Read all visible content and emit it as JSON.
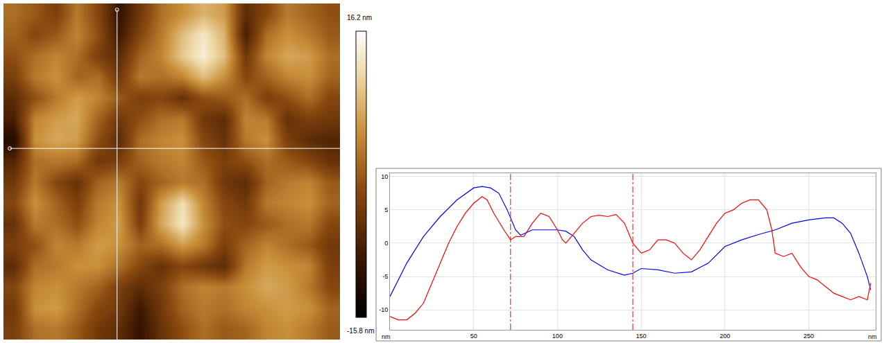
{
  "chart_data": [
    {
      "type": "heatmap",
      "tick_labels": false,
      "xlim": [
        -0.5,
        15.5
      ],
      "ylim": [
        15.5,
        -0.5
      ],
      "cells": [
        [
          2,
          0,
          -3,
          3,
          -2,
          -10,
          -4,
          2,
          5,
          8,
          6,
          -6,
          -2,
          3,
          1,
          -1
        ],
        [
          1,
          -2,
          0,
          4,
          -1,
          -9,
          -2,
          3,
          9,
          13,
          8,
          -8,
          2,
          5,
          3,
          0
        ],
        [
          -1,
          2,
          4,
          2,
          -3,
          -6,
          1,
          4,
          10,
          14,
          9,
          -4,
          4,
          7,
          6,
          2
        ],
        [
          -3,
          3,
          5,
          1,
          2,
          -4,
          3,
          2,
          4,
          9,
          5,
          -2,
          1,
          4,
          5,
          1
        ],
        [
          -6,
          -1,
          3,
          6,
          4,
          0,
          -3,
          -2,
          -5,
          -1,
          0,
          2,
          -3,
          -1,
          2,
          -2
        ],
        [
          -8,
          4,
          6,
          7,
          1,
          -4,
          -1,
          2,
          3,
          -4,
          -6,
          4,
          3,
          -5,
          -3,
          -4
        ],
        [
          -12,
          5,
          7,
          6,
          -1,
          -6,
          2,
          4,
          5,
          -2,
          -5,
          3,
          5,
          -3,
          -6,
          -7
        ],
        [
          -7,
          2,
          3,
          2,
          -4,
          -3,
          1,
          3,
          4,
          0,
          -3,
          -1,
          2,
          0,
          -2,
          -5
        ],
        [
          -4,
          3,
          -2,
          -5,
          1,
          3,
          -2,
          1,
          3,
          2,
          -4,
          -6,
          1,
          3,
          4,
          0
        ],
        [
          -2,
          5,
          1,
          -3,
          3,
          5,
          -4,
          6,
          12,
          4,
          -2,
          -4,
          3,
          4,
          5,
          1
        ],
        [
          -5,
          3,
          2,
          -1,
          4,
          6,
          -3,
          7,
          13,
          5,
          -1,
          -2,
          0,
          2,
          3,
          -2
        ],
        [
          -3,
          -1,
          4,
          3,
          6,
          5,
          1,
          2,
          6,
          3,
          -3,
          1,
          4,
          2,
          0,
          -4
        ],
        [
          -6,
          2,
          3,
          5,
          5,
          2,
          -2,
          -5,
          -2,
          -4,
          -6,
          3,
          6,
          5,
          4,
          -3
        ],
        [
          -2,
          4,
          5,
          3,
          1,
          -3,
          -6,
          -3,
          2,
          4,
          3,
          5,
          7,
          6,
          3,
          -2
        ],
        [
          -4,
          5,
          6,
          2,
          -2,
          -4,
          -9,
          -4,
          1,
          3,
          2,
          4,
          5,
          6,
          5,
          1
        ],
        [
          -3,
          2,
          3,
          0,
          -4,
          -6,
          -10,
          -5,
          -1,
          2,
          0,
          1,
          4,
          5,
          3,
          0
        ]
      ],
      "colorbar": {
        "range": [
          -15.8,
          16.2
        ],
        "ticks": [
          {
            "value": 16.2,
            "label": "16.2 nm"
          },
          {
            "value": -15.8,
            "label": "-15.8 nm"
          }
        ]
      },
      "crosshair": {
        "x": 4.9,
        "y": 6.4,
        "x_start": -0.2,
        "y_start": -0.2,
        "color": "#ffffff"
      }
    },
    {
      "type": "line",
      "xlabel": "nm",
      "xlim": [
        0,
        290
      ],
      "ylim": [
        -13,
        10.5
      ],
      "xticks": [
        50,
        100,
        150,
        200,
        250
      ],
      "yticks": [
        -10,
        -5,
        0,
        5,
        10
      ],
      "grid": true,
      "series": [
        {
          "color": "#0000ff",
          "x": [
            0,
            10,
            20,
            30,
            40,
            50,
            55,
            60,
            65,
            70,
            75,
            78,
            85,
            95,
            100,
            105,
            110,
            115,
            120,
            130,
            140,
            145,
            150,
            160,
            170,
            180,
            190,
            200,
            210,
            220,
            230,
            240,
            250,
            260,
            265,
            270,
            275,
            280,
            285,
            287
          ],
          "values": [
            -8,
            -3,
            1,
            4,
            6.5,
            8.3,
            8.5,
            8.3,
            7.5,
            5,
            2,
            1.2,
            2,
            2,
            2,
            1.8,
            1,
            -1,
            -2.5,
            -4,
            -4.8,
            -4.5,
            -3.8,
            -4,
            -4.5,
            -4.3,
            -3,
            -0.5,
            0.5,
            1.3,
            2,
            3,
            3.5,
            3.8,
            3.8,
            3,
            1.5,
            -1.5,
            -5,
            -7
          ]
        },
        {
          "color": "#ff0000",
          "x": [
            0,
            5,
            10,
            15,
            20,
            25,
            30,
            35,
            40,
            45,
            50,
            55,
            58,
            62,
            68,
            72,
            75,
            80,
            85,
            90,
            95,
            100,
            103,
            105,
            110,
            115,
            120,
            125,
            130,
            135,
            140,
            145,
            150,
            155,
            160,
            165,
            170,
            175,
            180,
            185,
            190,
            195,
            200,
            205,
            210,
            215,
            220,
            225,
            228,
            230,
            235,
            240,
            245,
            250,
            255,
            260,
            265,
            270,
            275,
            280,
            285,
            287
          ],
          "values": [
            -11,
            -11.5,
            -11.5,
            -10.5,
            -9,
            -6,
            -3,
            0,
            2.5,
            4.5,
            6,
            7,
            6.5,
            4.5,
            2,
            0.5,
            1,
            1,
            3,
            4.5,
            4,
            2,
            0.5,
            0,
            1.5,
            3,
            4,
            4.2,
            4,
            4.3,
            3,
            0,
            -1.5,
            -1,
            0.5,
            0.5,
            0,
            -1.5,
            -2.5,
            -1,
            1,
            3,
            4.5,
            5,
            6,
            6.5,
            6.5,
            5,
            2,
            -1.5,
            -2,
            -1.5,
            -3.5,
            -5,
            -5.5,
            -6.5,
            -7.5,
            -8,
            -8.5,
            -8,
            -8.5,
            -6
          ]
        }
      ],
      "vlines": {
        "x": [
          72,
          145
        ],
        "color": "#ff0000",
        "line_style": "dashdot"
      }
    }
  ]
}
